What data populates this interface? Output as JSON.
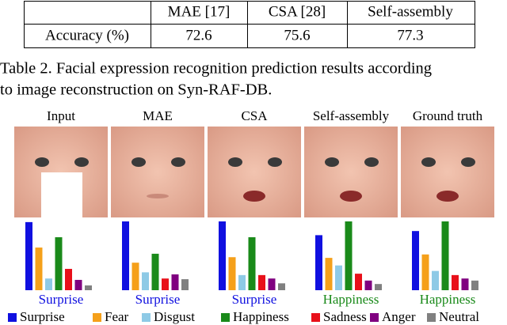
{
  "table": {
    "header": [
      "MAE [17]",
      "CSA [28]",
      "Self-assembly"
    ],
    "rows": [
      {
        "label": "Accuracy (%)",
        "values": [
          72.6,
          75.6,
          77.3
        ]
      }
    ]
  },
  "caption": [
    "Table 2. Facial expression recognition prediction results according",
    "to image reconstruction on Syn-RAF-DB."
  ],
  "figure": {
    "type": "bar",
    "classes": [
      {
        "name": "Surprise",
        "color": "#1010e0"
      },
      {
        "name": "Fear",
        "color": "#f5a01a"
      },
      {
        "name": "Disgust",
        "color": "#8ecae6"
      },
      {
        "name": "Happiness",
        "color": "#1a8a1a"
      },
      {
        "name": "Sadness",
        "color": "#e8101a"
      },
      {
        "name": "Anger",
        "color": "#800080"
      },
      {
        "name": "Neutral",
        "color": "#808080"
      }
    ],
    "panels": [
      {
        "title": "Input",
        "prediction": "Surprise",
        "values": [
          0.99,
          0.62,
          0.17,
          0.77,
          0.31,
          0.15,
          0.07
        ]
      },
      {
        "title": "MAE",
        "prediction": "Surprise",
        "values": [
          1.0,
          0.4,
          0.26,
          0.53,
          0.17,
          0.23,
          0.16
        ]
      },
      {
        "title": "CSA",
        "prediction": "Surprise",
        "values": [
          1.0,
          0.48,
          0.22,
          0.77,
          0.22,
          0.17,
          0.1
        ]
      },
      {
        "title": "Self-assembly",
        "prediction": "Happiness",
        "values": [
          0.8,
          0.47,
          0.36,
          1.0,
          0.24,
          0.14,
          0.09
        ]
      },
      {
        "title": "Ground truth",
        "prediction": "Happiness",
        "values": [
          0.86,
          0.52,
          0.28,
          1.0,
          0.22,
          0.17,
          0.14
        ]
      }
    ]
  }
}
